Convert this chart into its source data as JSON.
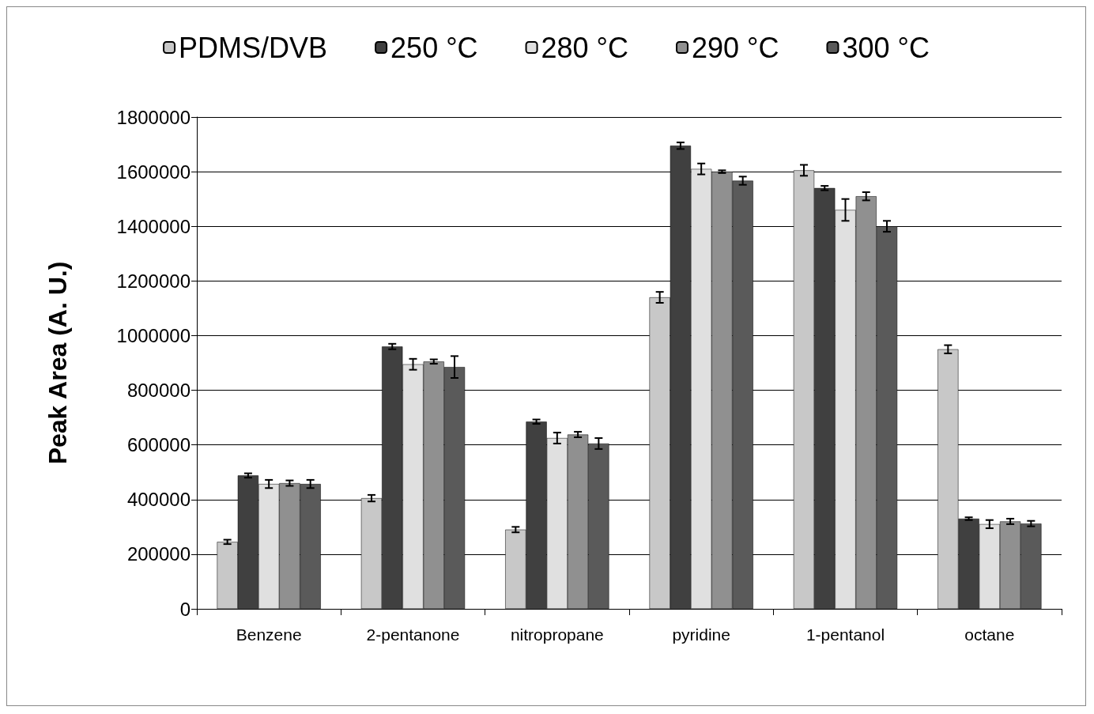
{
  "chart_data": {
    "type": "bar",
    "ylabel": "Peak Area (A. U.)",
    "categories": [
      "Benzene",
      "2-pentanone",
      "nitropropane",
      "pyridine",
      "1-pentanol",
      "octane"
    ],
    "series": [
      {
        "name": "PDMS/DVB",
        "color": "#c8c8c8",
        "values": [
          245000,
          405000,
          290000,
          1140000,
          1605000,
          950000
        ],
        "errors": [
          8000,
          12000,
          10000,
          20000,
          20000,
          15000
        ]
      },
      {
        "name": "250 °C",
        "color": "#404040",
        "values": [
          488000,
          960000,
          685000,
          1695000,
          1540000,
          330000
        ],
        "errors": [
          8000,
          10000,
          8000,
          12000,
          8000,
          5000
        ]
      },
      {
        "name": "280 °C",
        "color": "#e0e0e0",
        "values": [
          457000,
          895000,
          625000,
          1610000,
          1460000,
          310000
        ],
        "errors": [
          15000,
          20000,
          20000,
          20000,
          40000,
          15000
        ]
      },
      {
        "name": "290 °C",
        "color": "#909090",
        "values": [
          460000,
          905000,
          638000,
          1600000,
          1510000,
          320000
        ],
        "errors": [
          10000,
          8000,
          10000,
          5000,
          15000,
          10000
        ]
      },
      {
        "name": "300 °C",
        "color": "#5a5a5a",
        "values": [
          457000,
          885000,
          605000,
          1567000,
          1400000,
          312000
        ],
        "errors": [
          15000,
          40000,
          20000,
          15000,
          20000,
          10000
        ]
      }
    ],
    "ylim": [
      0,
      1800000
    ],
    "yticks": [
      0,
      200000,
      400000,
      600000,
      800000,
      1000000,
      1200000,
      1400000,
      1600000,
      1800000
    ],
    "grid": "y",
    "legend": "top"
  }
}
